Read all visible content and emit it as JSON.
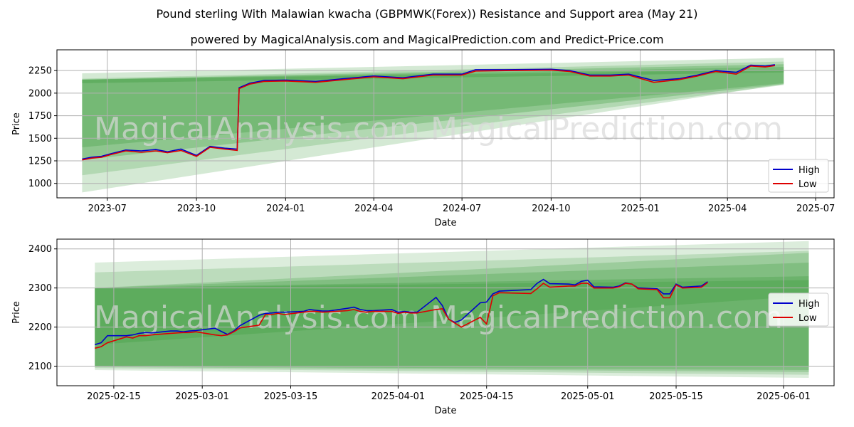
{
  "title": "Pound sterling With Malawian kwacha (GBPMWK(Forex)) Resistance and Support area (May 21)",
  "subtitle": "powered by MagicalAnalysis.com and MagicalPrediction.com and Predict-Price.com",
  "watermarks": [
    "MagicalAnalysis.com",
    "MagicalPrediction.com"
  ],
  "colors": {
    "high": "#0000cc",
    "low": "#dd0000",
    "band": "#3c9a3c"
  },
  "chart_data": [
    {
      "type": "line",
      "xlabel": "Date",
      "ylabel": "Price",
      "legend": "bottom-right",
      "grid": true,
      "xlim": [
        "2023-05-10",
        "2025-07-20"
      ],
      "ylim": [
        840,
        2480
      ],
      "x_ticks": [
        {
          "date": "2023-07-01",
          "label": "2023-07"
        },
        {
          "date": "2023-10-01",
          "label": "2023-10"
        },
        {
          "date": "2024-01-01",
          "label": "2024-01"
        },
        {
          "date": "2024-04-01",
          "label": "2024-04"
        },
        {
          "date": "2024-07-01",
          "label": "2024-07"
        },
        {
          "date": "2024-10-01",
          "label": "2024-10"
        },
        {
          "date": "2025-01-01",
          "label": "2025-01"
        },
        {
          "date": "2025-04-01",
          "label": "2025-04"
        },
        {
          "date": "2025-07-01",
          "label": "2025-07"
        }
      ],
      "y_ticks": [
        1000,
        1250,
        1500,
        1750,
        2000,
        2250
      ],
      "bands": [
        {
          "x": [
            "2023-06-05",
            "2025-05-29"
          ],
          "top": [
            2220,
            2390
          ],
          "bottom": [
            900,
            2100
          ],
          "opacity": 0.22
        },
        {
          "x": [
            "2023-06-05",
            "2025-05-29"
          ],
          "top": [
            2160,
            2350
          ],
          "bottom": [
            1090,
            2090
          ],
          "opacity": 0.22
        },
        {
          "x": [
            "2023-06-05",
            "2025-05-29"
          ],
          "top": [
            2150,
            2320
          ],
          "bottom": [
            1260,
            2100
          ],
          "opacity": 0.3
        },
        {
          "x": [
            "2023-06-05",
            "2025-05-29"
          ],
          "top": [
            2150,
            2290
          ],
          "bottom": [
            1400,
            2110
          ],
          "opacity": 0.3
        },
        {
          "x": [
            "2023-06-05",
            "2025-05-29"
          ],
          "top": [
            2150,
            2260
          ],
          "bottom": [
            2110,
            2230
          ],
          "opacity": 0.35
        }
      ],
      "series": [
        {
          "name": "High",
          "color": "#0000cc",
          "x": [
            "2023-06-05",
            "2023-06-15",
            "2023-06-25",
            "2023-07-05",
            "2023-07-20",
            "2023-08-05",
            "2023-08-20",
            "2023-09-01",
            "2023-09-15",
            "2023-10-01",
            "2023-10-15",
            "2023-10-30",
            "2023-11-12",
            "2023-11-14",
            "2023-11-25",
            "2023-12-10",
            "2024-01-01",
            "2024-02-01",
            "2024-03-01",
            "2024-04-01",
            "2024-05-01",
            "2024-06-01",
            "2024-07-01",
            "2024-07-15",
            "2024-08-15",
            "2024-10-01",
            "2024-10-20",
            "2024-11-10",
            "2024-12-01",
            "2024-12-20",
            "2025-01-15",
            "2025-02-10",
            "2025-03-01",
            "2025-03-20",
            "2025-04-10",
            "2025-04-25",
            "2025-05-10",
            "2025-05-20"
          ],
          "y": [
            1270,
            1290,
            1300,
            1330,
            1370,
            1360,
            1375,
            1350,
            1380,
            1310,
            1410,
            1390,
            1380,
            2060,
            2110,
            2140,
            2145,
            2130,
            2160,
            2190,
            2170,
            2210,
            2210,
            2260,
            2260,
            2265,
            2250,
            2200,
            2200,
            2210,
            2140,
            2160,
            2200,
            2250,
            2230,
            2310,
            2300,
            2315
          ]
        },
        {
          "name": "Low",
          "color": "#dd0000",
          "x": [
            "2023-06-05",
            "2023-06-15",
            "2023-06-25",
            "2023-07-05",
            "2023-07-20",
            "2023-08-05",
            "2023-08-20",
            "2023-09-01",
            "2023-09-15",
            "2023-10-01",
            "2023-10-15",
            "2023-10-30",
            "2023-11-12",
            "2023-11-14",
            "2023-11-25",
            "2023-12-10",
            "2024-01-01",
            "2024-02-01",
            "2024-03-01",
            "2024-04-01",
            "2024-05-01",
            "2024-06-01",
            "2024-07-01",
            "2024-07-15",
            "2024-08-15",
            "2024-10-01",
            "2024-10-20",
            "2024-11-10",
            "2024-12-01",
            "2024-12-20",
            "2025-01-15",
            "2025-02-10",
            "2025-03-01",
            "2025-03-20",
            "2025-04-10",
            "2025-04-25",
            "2025-05-10",
            "2025-05-20"
          ],
          "y": [
            1260,
            1280,
            1290,
            1320,
            1360,
            1345,
            1360,
            1340,
            1365,
            1300,
            1400,
            1380,
            1365,
            2050,
            2100,
            2130,
            2135,
            2120,
            2150,
            2180,
            2160,
            2200,
            2200,
            2245,
            2250,
            2255,
            2240,
            2190,
            2190,
            2200,
            2120,
            2150,
            2190,
            2240,
            2210,
            2300,
            2290,
            2305
          ]
        }
      ]
    },
    {
      "type": "line",
      "xlabel": "Date",
      "ylabel": "Price",
      "legend": "right",
      "grid": true,
      "xlim": [
        "2025-02-06",
        "2025-06-09"
      ],
      "ylim": [
        2050,
        2425
      ],
      "x_ticks": [
        {
          "date": "2025-02-15",
          "label": "2025-02-15"
        },
        {
          "date": "2025-03-01",
          "label": "2025-03-01"
        },
        {
          "date": "2025-03-15",
          "label": "2025-03-15"
        },
        {
          "date": "2025-04-01",
          "label": "2025-04-01"
        },
        {
          "date": "2025-04-15",
          "label": "2025-04-15"
        },
        {
          "date": "2025-05-01",
          "label": "2025-05-01"
        },
        {
          "date": "2025-05-15",
          "label": "2025-05-15"
        },
        {
          "date": "2025-06-01",
          "label": "2025-06-01"
        }
      ],
      "y_ticks": [
        2100,
        2200,
        2300,
        2400
      ],
      "bands": [
        {
          "x": [
            "2025-02-12",
            "2025-06-05"
          ],
          "top": [
            2365,
            2420
          ],
          "bottom": [
            2090,
            2070
          ],
          "opacity": 0.18
        },
        {
          "x": [
            "2025-02-12",
            "2025-06-05"
          ],
          "top": [
            2340,
            2395
          ],
          "bottom": [
            2095,
            2078
          ],
          "opacity": 0.2
        },
        {
          "x": [
            "2025-02-12",
            "2025-06-05"
          ],
          "top": [
            2300,
            2390
          ],
          "bottom": [
            2098,
            2085
          ],
          "opacity": 0.25
        },
        {
          "x": [
            "2025-02-12",
            "2025-06-05"
          ],
          "top": [
            2300,
            2365
          ],
          "bottom": [
            2100,
            2090
          ],
          "opacity": 0.28
        },
        {
          "x": [
            "2025-02-12",
            "2025-06-05"
          ],
          "top": [
            2300,
            2330
          ],
          "bottom": [
            2100,
            2100
          ],
          "opacity": 0.3
        },
        {
          "x": [
            "2025-02-12",
            "2025-06-05"
          ],
          "top": [
            2300,
            2320
          ],
          "bottom": [
            2155,
            2280
          ],
          "opacity": 0.3
        }
      ],
      "series": [
        {
          "name": "High",
          "color": "#0000cc",
          "x": [
            "2025-02-12",
            "2025-02-13",
            "2025-02-14",
            "2025-02-17",
            "2025-02-18",
            "2025-02-19",
            "2025-02-20",
            "2025-02-21",
            "2025-02-24",
            "2025-02-25",
            "2025-02-26",
            "2025-02-27",
            "2025-02-28",
            "2025-03-03",
            "2025-03-04",
            "2025-03-05",
            "2025-03-06",
            "2025-03-07",
            "2025-03-10",
            "2025-03-11",
            "2025-03-12",
            "2025-03-13",
            "2025-03-14",
            "2025-03-17",
            "2025-03-18",
            "2025-03-19",
            "2025-03-20",
            "2025-03-21",
            "2025-03-24",
            "2025-03-25",
            "2025-03-26",
            "2025-03-27",
            "2025-03-28",
            "2025-03-31",
            "2025-04-01",
            "2025-04-02",
            "2025-04-03",
            "2025-04-04",
            "2025-04-07",
            "2025-04-08",
            "2025-04-09",
            "2025-04-10",
            "2025-04-11",
            "2025-04-14",
            "2025-04-15",
            "2025-04-16",
            "2025-04-17",
            "2025-04-22",
            "2025-04-23",
            "2025-04-24",
            "2025-04-25",
            "2025-04-28",
            "2025-04-29",
            "2025-04-30",
            "2025-05-01",
            "2025-05-02",
            "2025-05-05",
            "2025-05-06",
            "2025-05-07",
            "2025-05-08",
            "2025-05-09",
            "2025-05-12",
            "2025-05-13",
            "2025-05-14",
            "2025-05-15",
            "2025-05-16",
            "2025-05-19",
            "2025-05-20"
          ],
          "y": [
            2155,
            2160,
            2178,
            2178,
            2180,
            2184,
            2186,
            2185,
            2190,
            2190,
            2188,
            2190,
            2191,
            2197,
            2189,
            2181,
            2190,
            2204,
            2230,
            2235,
            2236,
            2238,
            2238,
            2240,
            2245,
            2243,
            2241,
            2241,
            2248,
            2251,
            2245,
            2242,
            2242,
            2245,
            2238,
            2240,
            2238,
            2238,
            2276,
            2255,
            2220,
            2212,
            2218,
            2262,
            2264,
            2285,
            2292,
            2296,
            2312,
            2322,
            2311,
            2310,
            2308,
            2317,
            2320,
            2303,
            2302,
            2305,
            2313,
            2310,
            2300,
            2298,
            2285,
            2285,
            2310,
            2302,
            2305,
            2316
          ]
        },
        {
          "name": "Low",
          "color": "#dd0000",
          "x": [
            "2025-02-12",
            "2025-02-13",
            "2025-02-14",
            "2025-02-17",
            "2025-02-18",
            "2025-02-19",
            "2025-02-20",
            "2025-02-21",
            "2025-02-24",
            "2025-02-25",
            "2025-02-26",
            "2025-02-27",
            "2025-02-28",
            "2025-03-03",
            "2025-03-04",
            "2025-03-05",
            "2025-03-06",
            "2025-03-07",
            "2025-03-10",
            "2025-03-11",
            "2025-03-12",
            "2025-03-13",
            "2025-03-14",
            "2025-03-17",
            "2025-03-18",
            "2025-03-19",
            "2025-03-20",
            "2025-03-21",
            "2025-03-24",
            "2025-03-25",
            "2025-03-26",
            "2025-03-27",
            "2025-03-28",
            "2025-03-31",
            "2025-04-01",
            "2025-04-02",
            "2025-04-03",
            "2025-04-04",
            "2025-04-07",
            "2025-04-08",
            "2025-04-09",
            "2025-04-10",
            "2025-04-11",
            "2025-04-14",
            "2025-04-15",
            "2025-04-16",
            "2025-04-17",
            "2025-04-22",
            "2025-04-23",
            "2025-04-24",
            "2025-04-25",
            "2025-04-28",
            "2025-04-29",
            "2025-04-30",
            "2025-05-01",
            "2025-05-02",
            "2025-05-05",
            "2025-05-06",
            "2025-05-07",
            "2025-05-08",
            "2025-05-09",
            "2025-05-12",
            "2025-05-13",
            "2025-05-14",
            "2025-05-15",
            "2025-05-16",
            "2025-05-19",
            "2025-05-20"
          ],
          "y": [
            2146,
            2150,
            2160,
            2175,
            2172,
            2178,
            2178,
            2180,
            2184,
            2185,
            2186,
            2186,
            2188,
            2180,
            2178,
            2180,
            2188,
            2198,
            2205,
            2232,
            2232,
            2235,
            2232,
            2238,
            2240,
            2240,
            2238,
            2239,
            2242,
            2245,
            2240,
            2238,
            2240,
            2240,
            2235,
            2238,
            2236,
            2236,
            2245,
            2247,
            2220,
            2210,
            2200,
            2225,
            2208,
            2280,
            2288,
            2286,
            2298,
            2312,
            2302,
            2305,
            2305,
            2312,
            2312,
            2300,
            2300,
            2303,
            2312,
            2310,
            2298,
            2296,
            2275,
            2275,
            2308,
            2300,
            2302,
            2314
          ]
        }
      ]
    }
  ]
}
